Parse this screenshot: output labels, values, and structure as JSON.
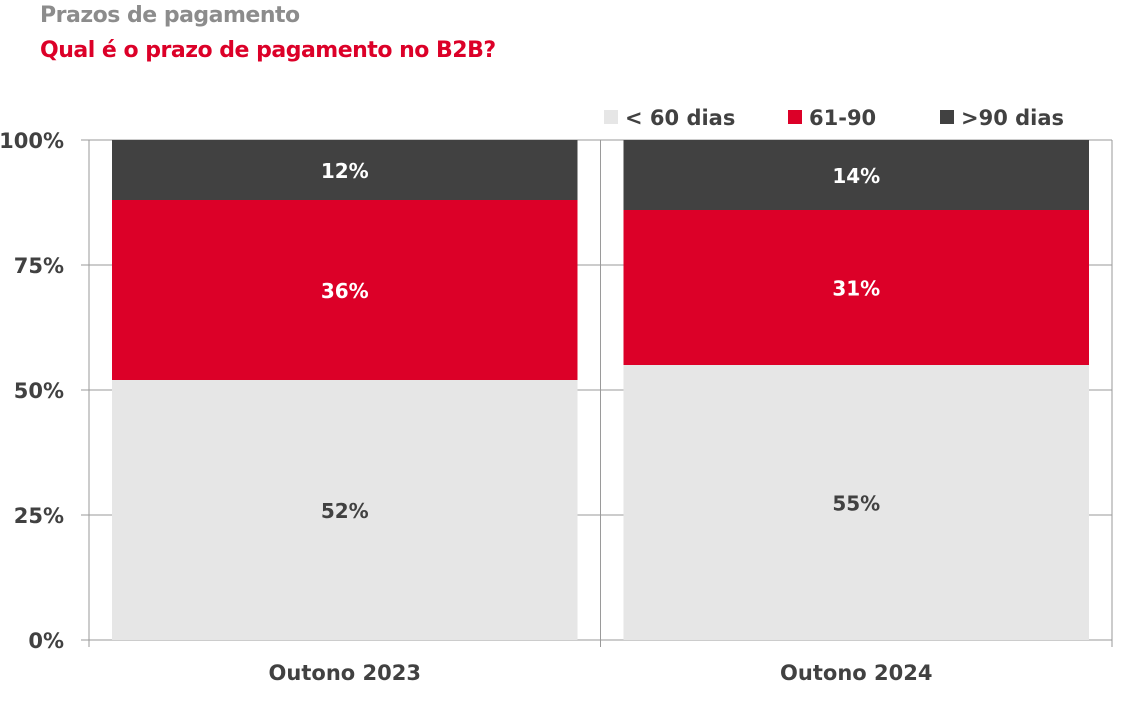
{
  "header": {
    "title": "Prazos de pagamento",
    "subtitle": "Qual é o prazo de pagamento no B2B?"
  },
  "chart_data": {
    "type": "bar",
    "stacked": true,
    "categories": [
      "Outono 2023",
      "Outono 2024"
    ],
    "series": [
      {
        "name": "< 60 dias",
        "color": "#e6e6e6",
        "label_color": "#414141",
        "values": [
          52,
          55
        ]
      },
      {
        "name": "61-90",
        "color": "#dc0028",
        "label_color": "#ffffff",
        "values": [
          36,
          31
        ]
      },
      {
        "name": ">90 dias",
        "color": "#414141",
        "label_color": "#ffffff",
        "values": [
          12,
          14
        ]
      }
    ],
    "data_labels": [
      [
        "52%",
        "55%"
      ],
      [
        "36%",
        "31%"
      ],
      [
        "12%",
        "14%"
      ]
    ],
    "ylim": [
      0,
      100
    ],
    "yticks": [
      0,
      25,
      50,
      75,
      100
    ],
    "ytick_labels": [
      "0%",
      "25%",
      "50%",
      "75%",
      "100%"
    ],
    "grid": true,
    "legend_position": "top-right",
    "xlabel": "",
    "ylabel": ""
  }
}
